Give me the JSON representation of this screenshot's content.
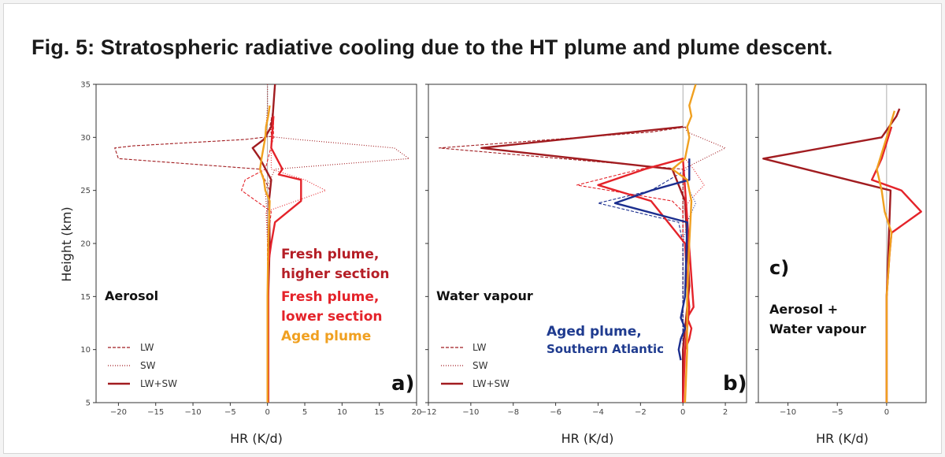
{
  "figure": {
    "title": "Fig. 5: Stratospheric radiative cooling due to the HT plume and plume descent."
  },
  "colors": {
    "fresh_high": "#a11c20",
    "fresh_low": "#e4232a",
    "aged": "#f0a020",
    "aged_south": "#1c2f8f",
    "text_fresh_high": "#b51e26",
    "text_fresh_low": "#e4232a",
    "text_aged": "#f0a020",
    "text_aged_south": "#1f3b8f"
  },
  "chart_data": [
    {
      "type": "line",
      "panel_label": "a)",
      "panel_title": "Aerosol",
      "xlabel": "HR (K/d)",
      "ylabel": "Height (km)",
      "xlim": [
        -23,
        20
      ],
      "ylim": [
        5,
        35
      ],
      "xticks": [
        -20,
        -15,
        -10,
        -5,
        0,
        5,
        10,
        15,
        20
      ],
      "yticks": [
        5,
        10,
        15,
        20,
        25,
        30,
        35
      ],
      "legend": {
        "entries": [
          "LW",
          "SW",
          "LW+SW"
        ],
        "placement": "bottom-left"
      },
      "annotations": [
        "Fresh plume,",
        "higher section",
        "Fresh plume,",
        "lower section",
        "Aged plume"
      ],
      "series": [
        {
          "name": "Fresh plume, higher section LW",
          "color": "fresh_high",
          "style": "dashed",
          "x": [
            0,
            0,
            0.2,
            0.3,
            -1.0,
            -20.0,
            -20.5,
            -18.0,
            -3.0,
            0.6,
            0.3,
            0.6,
            0.8,
            0.9,
            1.0
          ],
          "y": [
            5,
            20,
            23,
            25,
            27,
            28,
            29,
            29.2,
            29.8,
            30.1,
            31,
            32,
            33,
            34,
            35
          ]
        },
        {
          "name": "Fresh plume, higher section SW",
          "color": "fresh_high",
          "style": "dotted",
          "x": [
            0,
            0,
            -0.1,
            -0.3,
            1.0,
            19.0,
            17.0,
            4.0,
            0.0,
            -0.2,
            -0.1,
            0.0,
            0.0
          ],
          "y": [
            5,
            20,
            23,
            25,
            27,
            28,
            29,
            29.8,
            30.1,
            31,
            32,
            33,
            35
          ]
        },
        {
          "name": "Fresh plume, higher section LW+SW",
          "color": "fresh_high",
          "style": "solid",
          "x": [
            0.1,
            0.1,
            0.3,
            0.2,
            0.5,
            -1.0,
            -2.0,
            -0.5,
            0.5,
            0.7,
            0.9,
            1.0
          ],
          "y": [
            5,
            15,
            20,
            24,
            26,
            28,
            29,
            29.8,
            31,
            32,
            34,
            35
          ]
        },
        {
          "name": "Fresh plume, lower section LW",
          "color": "fresh_low",
          "style": "dashed",
          "x": [
            0,
            0,
            0.5,
            -3.5,
            -3.0,
            -0.3,
            0.8,
            0.8
          ],
          "y": [
            5,
            20,
            23,
            25,
            26,
            27,
            30,
            32
          ]
        },
        {
          "name": "Fresh plume, lower section SW",
          "color": "fresh_low",
          "style": "dotted",
          "x": [
            0,
            0,
            -0.2,
            7.8,
            5.0,
            0.5,
            0.5
          ],
          "y": [
            5,
            20,
            23,
            25,
            26,
            27,
            32
          ]
        },
        {
          "name": "Fresh plume, lower section LW+SW",
          "color": "fresh_low",
          "style": "solid",
          "x": [
            0.1,
            0.1,
            0.5,
            1.0,
            4.5,
            4.5,
            1.5,
            2.0,
            0.5,
            0.7,
            0.8
          ],
          "y": [
            5,
            18,
            20,
            22,
            24,
            26,
            26.5,
            27,
            29,
            31,
            32
          ]
        },
        {
          "name": "Aged plume LW+SW",
          "color": "aged",
          "style": "solid",
          "x": [
            0,
            0,
            0.1,
            0.3,
            -0.3,
            -0.5,
            -1.0,
            -0.8,
            -0.3,
            -0.2,
            0.1,
            0.3
          ],
          "y": [
            5,
            15,
            20,
            24,
            25,
            26,
            27,
            28,
            30,
            31,
            32,
            33
          ]
        }
      ]
    },
    {
      "type": "line",
      "panel_label": "b)",
      "panel_title": "Water vapour",
      "xlabel": "HR (K/d)",
      "xlim": [
        -12,
        3
      ],
      "ylim": [
        5,
        35
      ],
      "xticks": [
        -12,
        -10,
        -8,
        -6,
        -4,
        -2,
        0,
        2
      ],
      "legend": {
        "entries": [
          "LW",
          "SW",
          "LW+SW"
        ],
        "placement": "bottom-left"
      },
      "annotations": [
        "Aged plume,",
        "Southern Atlantic"
      ],
      "series": [
        {
          "name": "Fresh plume, higher section LW",
          "color": "fresh_high",
          "style": "dashed",
          "x": [
            0,
            0,
            -11.5,
            -1.5,
            0.2
          ],
          "y": [
            5,
            27,
            29,
            30.5,
            31
          ]
        },
        {
          "name": "Fresh plume, higher section SW",
          "color": "fresh_high",
          "style": "dotted",
          "x": [
            0,
            0,
            2.0,
            0.2,
            0.1
          ],
          "y": [
            5,
            27,
            29,
            30.5,
            31
          ]
        },
        {
          "name": "Fresh plume, higher section LW+SW",
          "color": "fresh_high",
          "style": "solid",
          "x": [
            0,
            0,
            0.1,
            0.2,
            0.3,
            0.2,
            0.1,
            -0.5,
            -9.5,
            0.0
          ],
          "y": [
            5,
            10,
            12,
            14,
            16,
            20,
            24,
            27,
            29,
            31
          ]
        },
        {
          "name": "Fresh plume, lower section LW",
          "color": "fresh_low",
          "style": "dashed",
          "x": [
            0,
            0,
            -0.5,
            -5.0,
            -2.0,
            0.1
          ],
          "y": [
            5,
            23,
            24,
            25.5,
            27,
            28
          ]
        },
        {
          "name": "Fresh plume, lower section SW",
          "color": "fresh_low",
          "style": "dotted",
          "x": [
            0,
            0,
            0.3,
            1.0,
            0.5,
            0.1
          ],
          "y": [
            5,
            23,
            24,
            25.5,
            27,
            28
          ]
        },
        {
          "name": "Fresh plume, lower section LW+SW",
          "color": "fresh_low",
          "style": "solid",
          "x": [
            0,
            0.1,
            0.2,
            0.3,
            0.2,
            0.1,
            -1.5,
            -4.0,
            -1.8,
            0.0,
            0.5,
            0.2,
            0.4,
            0.3,
            0.1
          ],
          "y": [
            5,
            10,
            12,
            14,
            16,
            20,
            24,
            25.5,
            27,
            28,
            14,
            13,
            12,
            11,
            10
          ]
        },
        {
          "name": "Aged plume, Southern Atlantic LW",
          "color": "aged_south",
          "style": "dashed",
          "x": [
            0,
            0,
            -0.2,
            -4.0,
            -1.5,
            0.2
          ],
          "y": [
            5,
            20,
            22,
            23.8,
            25,
            27
          ]
        },
        {
          "name": "Aged plume, Southern Atlantic SW",
          "color": "aged_south",
          "style": "dotted",
          "x": [
            0,
            0,
            0.2,
            0.6,
            0.3,
            0.0
          ],
          "y": [
            5,
            20,
            22,
            23.8,
            25,
            27
          ]
        },
        {
          "name": "Aged plume, Southern Atlantic LW+SW",
          "color": "aged_south",
          "style": "solid",
          "x": [
            -0.1,
            -0.2,
            -0.1,
            0.1,
            -0.1,
            0.1,
            0.2,
            -3.2,
            -1.5,
            0.3,
            0.3
          ],
          "y": [
            9,
            10,
            11,
            12,
            13,
            15,
            22,
            23.8,
            25,
            26,
            28
          ]
        },
        {
          "name": "Aged plume LW+SW",
          "color": "aged",
          "style": "solid",
          "x": [
            0.1,
            0.2,
            0.2,
            0.3,
            0.4,
            0.3,
            0.2,
            -0.5,
            0.1,
            0.3,
            0.2,
            0.4,
            0.3,
            0.6
          ],
          "y": [
            5,
            10,
            15,
            20,
            24,
            25,
            26,
            27,
            28,
            30,
            31,
            32,
            33,
            35
          ]
        }
      ]
    },
    {
      "type": "line",
      "panel_label": "c)",
      "panel_title": "Aerosol + Water vapour",
      "title_lines": [
        "Aerosol +",
        "Water vapour"
      ],
      "xlabel": "HR (K/d)",
      "xlim": [
        -13,
        4
      ],
      "ylim": [
        5,
        35
      ],
      "xticks": [
        -10,
        -5,
        0
      ],
      "series": [
        {
          "name": "Fresh plume, higher section LW+SW",
          "color": "fresh_high",
          "style": "solid",
          "x": [
            0,
            0,
            0.2,
            0.4,
            -12.5,
            -0.5,
            1.0,
            1.3
          ],
          "y": [
            5,
            15,
            20,
            25,
            28,
            30,
            32,
            32.7
          ]
        },
        {
          "name": "Fresh plume, lower section LW+SW",
          "color": "fresh_low",
          "style": "solid",
          "x": [
            0,
            0,
            0.3,
            0.5,
            3.5,
            1.5,
            -1.5,
            -0.5,
            0.5
          ],
          "y": [
            5,
            15,
            19,
            21,
            23,
            25,
            26,
            28,
            31
          ]
        },
        {
          "name": "Aged plume LW+SW",
          "color": "aged",
          "style": "solid",
          "x": [
            0,
            0,
            0.3,
            0.5,
            -0.2,
            -0.5,
            -1.0,
            0.0,
            0.8
          ],
          "y": [
            5,
            15,
            19,
            21,
            23,
            25,
            27,
            30,
            32.5
          ]
        }
      ]
    }
  ]
}
